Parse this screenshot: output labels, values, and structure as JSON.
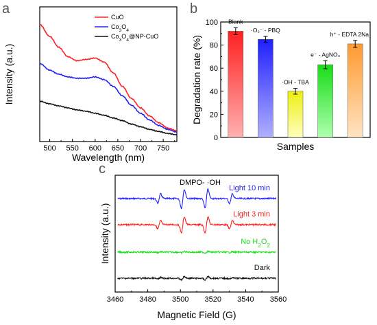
{
  "panels": {
    "a": "a",
    "b": "b",
    "c": "c"
  },
  "colors": {
    "red": "#ff2020",
    "blue": "#1f1fff",
    "black": "#111111",
    "green": "#22dd22"
  },
  "chart_data": [
    {
      "type": "line",
      "panel": "a",
      "xlabel": "Wavelength (nm)",
      "ylabel": "Intensity (a.u.)",
      "xlim": [
        478,
        780
      ],
      "ylim": [
        0,
        1
      ],
      "xticks": [
        "500",
        "550",
        "600",
        "650",
        "700",
        "750"
      ],
      "legend": {
        "placement": "top-right"
      },
      "series": [
        {
          "name": "CuO",
          "sub": "",
          "name2": "",
          "color": "#ff2020",
          "x": [
            478,
            500,
            520,
            540,
            560,
            580,
            600,
            620,
            640,
            660,
            680,
            700,
            720,
            740,
            760,
            780
          ],
          "y": [
            0.87,
            0.78,
            0.7,
            0.63,
            0.6,
            0.61,
            0.62,
            0.59,
            0.51,
            0.41,
            0.32,
            0.25,
            0.19,
            0.14,
            0.1,
            0.08
          ]
        },
        {
          "name": "Co",
          "sub": "3",
          "name2": "O",
          "sub2": "4",
          "color": "#1f1fff",
          "x": [
            478,
            500,
            520,
            540,
            560,
            580,
            600,
            620,
            640,
            660,
            680,
            700,
            720,
            740,
            760,
            780
          ],
          "y": [
            0.58,
            0.53,
            0.5,
            0.48,
            0.47,
            0.47,
            0.48,
            0.46,
            0.41,
            0.34,
            0.27,
            0.21,
            0.16,
            0.12,
            0.09,
            0.07
          ]
        },
        {
          "name": "Co",
          "sub": "3",
          "name2": "O",
          "sub2": "4",
          "name3": "@NP-CuO",
          "color": "#111111",
          "x": [
            478,
            500,
            520,
            540,
            560,
            580,
            600,
            620,
            640,
            660,
            680,
            700,
            720,
            740,
            760,
            780
          ],
          "y": [
            0.3,
            0.28,
            0.265,
            0.25,
            0.235,
            0.225,
            0.21,
            0.195,
            0.175,
            0.155,
            0.13,
            0.11,
            0.09,
            0.075,
            0.06,
            0.05
          ]
        }
      ]
    },
    {
      "type": "bar",
      "panel": "b",
      "xlabel": "Samples",
      "ylabel": "Degradation rate (%)",
      "ylim": [
        0,
        100
      ],
      "yticks": [
        "0",
        "20",
        "40",
        "60",
        "80",
        "100"
      ],
      "categories": [
        "Blank",
        "·O₂⁻ - PBQ",
        "·OH - TBA",
        "e⁻ - AgNO₃",
        "h⁺ - EDTA 2Na"
      ],
      "values": [
        92,
        85,
        40,
        63,
        81
      ],
      "errors": [
        3,
        2.5,
        2.5,
        3.5,
        3
      ],
      "colors": [
        [
          "#ffb0b0",
          "#ff2020"
        ],
        [
          "#b0b0ff",
          "#1f1fff"
        ],
        [
          "#ffffc0",
          "#eeee10"
        ],
        [
          "#b0ffb0",
          "#18dd18"
        ],
        [
          "#ffe4c4",
          "#ff9a30"
        ]
      ]
    },
    {
      "type": "line",
      "panel": "c",
      "xlabel": "Magnetic Field (G)",
      "ylabel": "Intensity (a.u.)",
      "xlim": [
        3460,
        3560
      ],
      "xticks": [
        "3460",
        "3480",
        "3500",
        "3520",
        "3540",
        "3560"
      ],
      "annotation": "DMPO- ·OH",
      "peaks": [
        3487,
        3501.5,
        3516,
        3531
      ],
      "series": [
        {
          "name": "Light 10 min",
          "color": "#1f1fff",
          "amplitude": 1.0
        },
        {
          "name": "Light 3 min",
          "color": "#ff2020",
          "amplitude": 0.85
        },
        {
          "name": "No H",
          "sub": "2",
          "name2": "O",
          "sub2": "2",
          "color": "#22dd22",
          "amplitude": 0.08
        },
        {
          "name": "Dark",
          "color": "#111111",
          "amplitude": 0.18
        }
      ]
    }
  ]
}
